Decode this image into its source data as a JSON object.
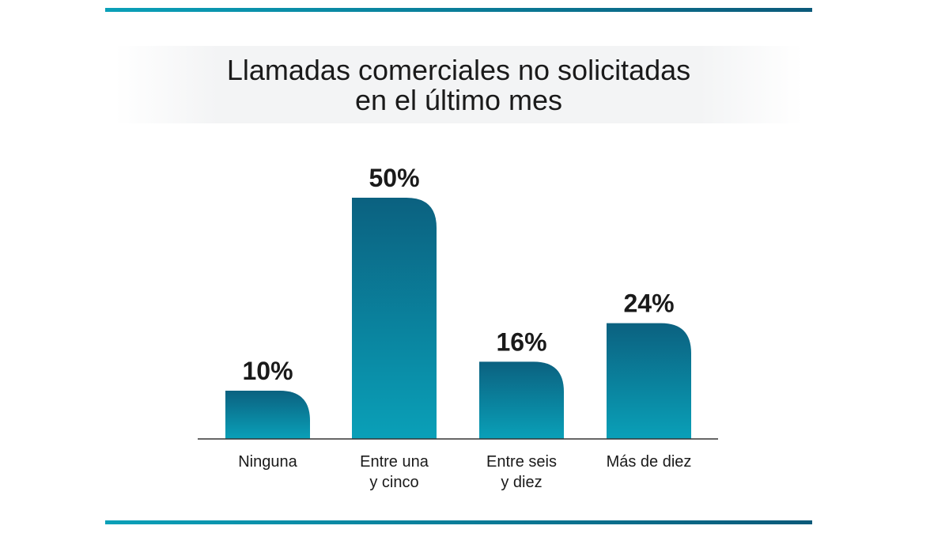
{
  "title_lines": [
    "Llamadas comerciales no solicitadas",
    "en el último mes"
  ],
  "colors": {
    "bar_top": "#0b6180",
    "bar_bottom": "#0aa0b8",
    "rule_left": "#0aa0b8",
    "rule_right": "#0b5a7a",
    "baseline": "#333333"
  },
  "chart_data": {
    "type": "bar",
    "title": "Llamadas comerciales no solicitadas en el último mes",
    "categories": [
      "Ninguna",
      "Entre una y cinco",
      "Entre seis y diez",
      "Más de diez"
    ],
    "category_lines": [
      [
        "Ninguna"
      ],
      [
        "Entre una",
        "y cinco"
      ],
      [
        "Entre seis",
        "y diez"
      ],
      [
        "Más de diez"
      ]
    ],
    "values": [
      10,
      50,
      16,
      24
    ],
    "value_labels": [
      "10%",
      "50%",
      "16%",
      "24%"
    ],
    "unit": "%",
    "ylim": [
      0,
      50
    ],
    "grid": false,
    "legend": "none"
  }
}
